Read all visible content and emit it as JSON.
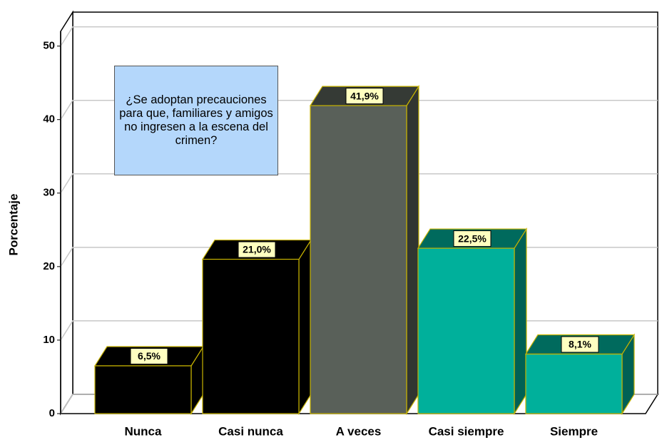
{
  "chart_data": {
    "type": "bar3d",
    "y_label": "Porcentaje",
    "annotation": "¿Se adoptan precauciones para que, familiares y amigos no ingresen a la escena del crimen?",
    "categories": [
      "Nunca",
      "Casi nunca",
      "A veces",
      "Casi siempre",
      "Siempre"
    ],
    "values": [
      6.5,
      21.0,
      41.9,
      22.5,
      8.1
    ],
    "value_labels": [
      "6,5%",
      "21,0%",
      "41,9%",
      "22,5%",
      "8,1%"
    ],
    "colors": [
      "#000000",
      "#000000",
      "#596059",
      "#00b09b",
      "#00b09b"
    ],
    "ylim": [
      0,
      52
    ],
    "yticks": [
      0,
      10,
      20,
      30,
      40,
      50
    ],
    "grid": true
  }
}
